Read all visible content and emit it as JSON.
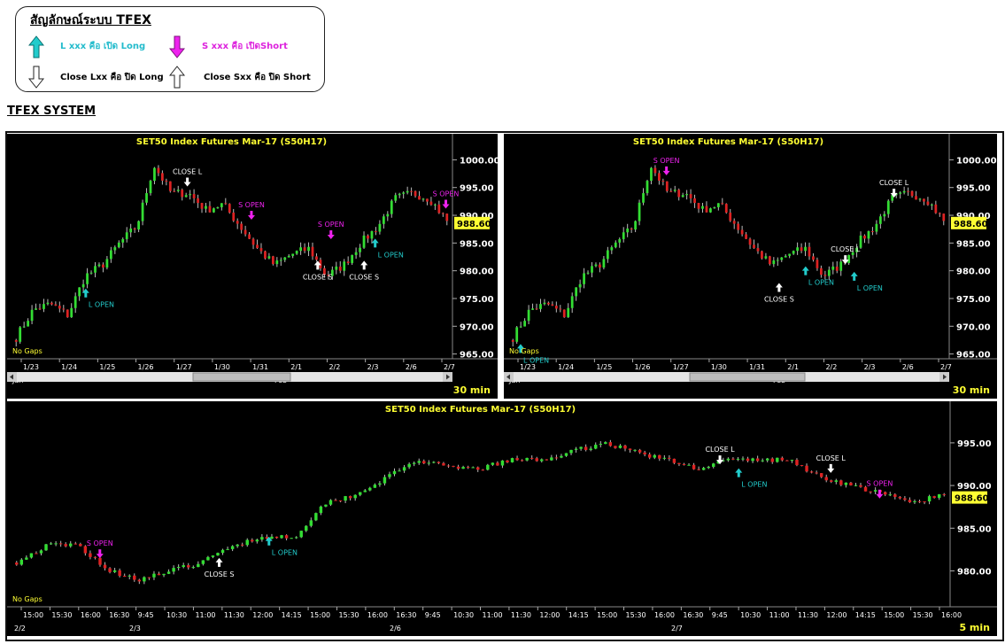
{
  "legend": {
    "title": "สัญลักษณ์ระบบ TFEX",
    "long_open": "L xxx คือ เปิด Long",
    "short_open": "S xxx คือ เปิดShort",
    "close_long": "Close Lxx คือ ปิด Long",
    "close_short": "Close Sxx คือ ปิด Short"
  },
  "system_title": "TFEX SYSTEM",
  "colors": {
    "up": "#33dd33",
    "down": "#dd2222",
    "long_arrow": "#22cccc",
    "short_arrow": "#ee22ee",
    "bg": "#000000",
    "title": "#ffff33",
    "price_tag": "#ffff33"
  },
  "chart_data": [
    {
      "type": "candlestick",
      "title": "SET50  Index  Futures  Mar-17  (S50H17)",
      "timeframe": "30  min",
      "note": "No  Gaps",
      "last_price": "988.60",
      "y_ticks": [
        "1000.00",
        "995.00",
        "990.00",
        "985.00",
        "980.00",
        "975.00",
        "970.00",
        "965.00"
      ],
      "ylim": [
        963.5,
        1001.5
      ],
      "x_ticks": [
        "1/23",
        "1/24",
        "1/25",
        "1/26",
        "1/27",
        "1/30",
        "1/31",
        "2/1",
        "2/2",
        "2/3",
        "2/6",
        "2/7"
      ],
      "months": [
        "Jan",
        "Feb"
      ],
      "anchors": [
        968,
        973,
        974,
        972,
        979,
        981,
        985,
        988,
        999,
        994,
        994,
        991,
        992,
        988,
        984,
        981,
        983,
        984,
        979,
        981,
        985,
        988,
        993,
        994,
        993,
        989
      ],
      "annotations": [
        {
          "text": "L  OPEN",
          "dir": "up",
          "kind": "long",
          "at": 0.17,
          "price": 976,
          "pos": "below"
        },
        {
          "text": "CLOSE  L",
          "dir": "down",
          "kind": "close",
          "at": 0.4,
          "price": 996,
          "pos": "above"
        },
        {
          "text": "S  OPEN",
          "dir": "down",
          "kind": "short",
          "at": 0.545,
          "price": 990,
          "pos": "above"
        },
        {
          "text": "CLOSE  S",
          "dir": "up",
          "kind": "close",
          "at": 0.695,
          "price": 981,
          "pos": "below"
        },
        {
          "text": "S  OPEN",
          "dir": "down",
          "kind": "short",
          "at": 0.725,
          "price": 986.5,
          "pos": "above"
        },
        {
          "text": "CLOSE  S",
          "dir": "up",
          "kind": "close",
          "at": 0.8,
          "price": 981,
          "pos": "below"
        },
        {
          "text": "L  OPEN",
          "dir": "up",
          "kind": "long",
          "at": 0.825,
          "price": 985,
          "pos": "below"
        },
        {
          "text": "S  OPEN",
          "dir": "down",
          "kind": "short",
          "at": 0.985,
          "price": 992,
          "pos": "above"
        }
      ]
    },
    {
      "type": "candlestick",
      "title": "SET50  Index  Futures  Mar-17  (S50H17)",
      "timeframe": "30  min",
      "note": "No  Gaps",
      "last_price": "988.60",
      "y_ticks": [
        "1000.00",
        "995.00",
        "990.00",
        "985.00",
        "980.00",
        "975.00",
        "970.00",
        "965.00"
      ],
      "ylim": [
        963.5,
        1001.5
      ],
      "x_ticks": [
        "1/23",
        "1/24",
        "1/25",
        "1/26",
        "1/27",
        "1/30",
        "1/31",
        "2/1",
        "2/2",
        "2/3",
        "2/6",
        "2/7"
      ],
      "months": [
        "Jan",
        "Feb"
      ],
      "anchors": [
        968,
        973,
        974,
        972,
        979,
        981,
        985,
        988,
        999,
        994,
        994,
        991,
        992,
        988,
        984,
        981,
        983,
        984,
        979,
        981,
        985,
        988,
        993,
        994,
        993,
        989
      ],
      "annotations": [
        {
          "text": "L  OPEN",
          "dir": "up",
          "kind": "long",
          "at": 0.03,
          "price": 966,
          "pos": "below"
        },
        {
          "text": "S  OPEN",
          "dir": "down",
          "kind": "short",
          "at": 0.36,
          "price": 998,
          "pos": "above"
        },
        {
          "text": "CLOSE  S",
          "dir": "up",
          "kind": "close",
          "at": 0.615,
          "price": 977,
          "pos": "below"
        },
        {
          "text": "L  OPEN",
          "dir": "up",
          "kind": "long",
          "at": 0.675,
          "price": 980,
          "pos": "below"
        },
        {
          "text": "CLOSE  L",
          "dir": "down",
          "kind": "close",
          "at": 0.765,
          "price": 982,
          "pos": "above"
        },
        {
          "text": "L  OPEN",
          "dir": "up",
          "kind": "long",
          "at": 0.785,
          "price": 979,
          "pos": "below"
        },
        {
          "text": "CLOSE  L",
          "dir": "down",
          "kind": "close",
          "at": 0.875,
          "price": 994,
          "pos": "above"
        }
      ]
    },
    {
      "type": "candlestick",
      "title": "SET50  Index  Futures  Mar-17  (S50H17)",
      "timeframe": "5  min",
      "note": "No  Gaps",
      "last_price": "988.60",
      "y_ticks": [
        "995.00",
        "990.00",
        "985.00",
        "980.00"
      ],
      "ylim": [
        976,
        998
      ],
      "x_ticks": [
        "15:00",
        "15:30",
        "16:00",
        "16:30",
        "9:45",
        "10:30",
        "11:00",
        "11:30",
        "12:00",
        "14:15",
        "15:00",
        "15:30",
        "16:00",
        "16:30",
        "9:45",
        "10:30",
        "11:00",
        "11:30",
        "12:00",
        "14:15",
        "15:00",
        "15:30",
        "16:00",
        "16:30",
        "9:45",
        "10:30",
        "11:00",
        "11:30",
        "12:00",
        "14:15",
        "15:00",
        "15:30",
        "16:00"
      ],
      "months": [
        "2/2",
        "2/3",
        "2/6",
        "2/7"
      ],
      "anchors": [
        981,
        983,
        983,
        980,
        979,
        980,
        981,
        983,
        984,
        984,
        988,
        989,
        991,
        993,
        992,
        992,
        993,
        993,
        994,
        995,
        994,
        993,
        992,
        993,
        993,
        993,
        991,
        990,
        989,
        988,
        989
      ],
      "annotations": [
        {
          "text": "S  OPEN",
          "dir": "down",
          "kind": "short",
          "at": 0.095,
          "price": 982,
          "pos": "above"
        },
        {
          "text": "CLOSE  S",
          "dir": "up",
          "kind": "close",
          "at": 0.222,
          "price": 981,
          "pos": "below"
        },
        {
          "text": "L  OPEN",
          "dir": "up",
          "kind": "long",
          "at": 0.275,
          "price": 983.5,
          "pos": "below"
        },
        {
          "text": "CLOSE  L",
          "dir": "down",
          "kind": "close",
          "at": 0.755,
          "price": 993,
          "pos": "above"
        },
        {
          "text": "L  OPEN",
          "dir": "up",
          "kind": "long",
          "at": 0.775,
          "price": 991.5,
          "pos": "below"
        },
        {
          "text": "CLOSE  L",
          "dir": "down",
          "kind": "close",
          "at": 0.873,
          "price": 992,
          "pos": "above"
        },
        {
          "text": "S  OPEN",
          "dir": "down",
          "kind": "short",
          "at": 0.925,
          "price": 989,
          "pos": "above"
        }
      ]
    }
  ]
}
